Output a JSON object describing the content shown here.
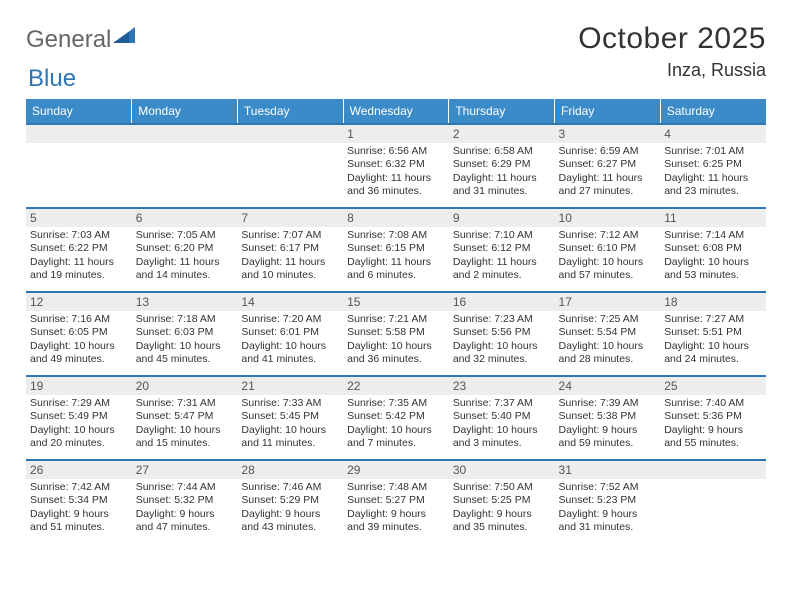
{
  "brand": {
    "general": "General",
    "blue": "Blue"
  },
  "title": "October 2025",
  "location": "Inza, Russia",
  "colors": {
    "header_bg": "#3b8bc8",
    "border": "#2e75b6",
    "daynum_bg": "#ededed",
    "text": "#333333",
    "logo_gray": "#666666",
    "logo_blue": "#2e75b6"
  },
  "daysOfWeek": [
    "Sunday",
    "Monday",
    "Tuesday",
    "Wednesday",
    "Thursday",
    "Friday",
    "Saturday"
  ],
  "weeks": [
    [
      null,
      null,
      null,
      {
        "num": "1",
        "sunrise": "6:56 AM",
        "sunset": "6:32 PM",
        "daylight": "11 hours and 36 minutes."
      },
      {
        "num": "2",
        "sunrise": "6:58 AM",
        "sunset": "6:29 PM",
        "daylight": "11 hours and 31 minutes."
      },
      {
        "num": "3",
        "sunrise": "6:59 AM",
        "sunset": "6:27 PM",
        "daylight": "11 hours and 27 minutes."
      },
      {
        "num": "4",
        "sunrise": "7:01 AM",
        "sunset": "6:25 PM",
        "daylight": "11 hours and 23 minutes."
      }
    ],
    [
      {
        "num": "5",
        "sunrise": "7:03 AM",
        "sunset": "6:22 PM",
        "daylight": "11 hours and 19 minutes."
      },
      {
        "num": "6",
        "sunrise": "7:05 AM",
        "sunset": "6:20 PM",
        "daylight": "11 hours and 14 minutes."
      },
      {
        "num": "7",
        "sunrise": "7:07 AM",
        "sunset": "6:17 PM",
        "daylight": "11 hours and 10 minutes."
      },
      {
        "num": "8",
        "sunrise": "7:08 AM",
        "sunset": "6:15 PM",
        "daylight": "11 hours and 6 minutes."
      },
      {
        "num": "9",
        "sunrise": "7:10 AM",
        "sunset": "6:12 PM",
        "daylight": "11 hours and 2 minutes."
      },
      {
        "num": "10",
        "sunrise": "7:12 AM",
        "sunset": "6:10 PM",
        "daylight": "10 hours and 57 minutes."
      },
      {
        "num": "11",
        "sunrise": "7:14 AM",
        "sunset": "6:08 PM",
        "daylight": "10 hours and 53 minutes."
      }
    ],
    [
      {
        "num": "12",
        "sunrise": "7:16 AM",
        "sunset": "6:05 PM",
        "daylight": "10 hours and 49 minutes."
      },
      {
        "num": "13",
        "sunrise": "7:18 AM",
        "sunset": "6:03 PM",
        "daylight": "10 hours and 45 minutes."
      },
      {
        "num": "14",
        "sunrise": "7:20 AM",
        "sunset": "6:01 PM",
        "daylight": "10 hours and 41 minutes."
      },
      {
        "num": "15",
        "sunrise": "7:21 AM",
        "sunset": "5:58 PM",
        "daylight": "10 hours and 36 minutes."
      },
      {
        "num": "16",
        "sunrise": "7:23 AM",
        "sunset": "5:56 PM",
        "daylight": "10 hours and 32 minutes."
      },
      {
        "num": "17",
        "sunrise": "7:25 AM",
        "sunset": "5:54 PM",
        "daylight": "10 hours and 28 minutes."
      },
      {
        "num": "18",
        "sunrise": "7:27 AM",
        "sunset": "5:51 PM",
        "daylight": "10 hours and 24 minutes."
      }
    ],
    [
      {
        "num": "19",
        "sunrise": "7:29 AM",
        "sunset": "5:49 PM",
        "daylight": "10 hours and 20 minutes."
      },
      {
        "num": "20",
        "sunrise": "7:31 AM",
        "sunset": "5:47 PM",
        "daylight": "10 hours and 15 minutes."
      },
      {
        "num": "21",
        "sunrise": "7:33 AM",
        "sunset": "5:45 PM",
        "daylight": "10 hours and 11 minutes."
      },
      {
        "num": "22",
        "sunrise": "7:35 AM",
        "sunset": "5:42 PM",
        "daylight": "10 hours and 7 minutes."
      },
      {
        "num": "23",
        "sunrise": "7:37 AM",
        "sunset": "5:40 PM",
        "daylight": "10 hours and 3 minutes."
      },
      {
        "num": "24",
        "sunrise": "7:39 AM",
        "sunset": "5:38 PM",
        "daylight": "9 hours and 59 minutes."
      },
      {
        "num": "25",
        "sunrise": "7:40 AM",
        "sunset": "5:36 PM",
        "daylight": "9 hours and 55 minutes."
      }
    ],
    [
      {
        "num": "26",
        "sunrise": "7:42 AM",
        "sunset": "5:34 PM",
        "daylight": "9 hours and 51 minutes."
      },
      {
        "num": "27",
        "sunrise": "7:44 AM",
        "sunset": "5:32 PM",
        "daylight": "9 hours and 47 minutes."
      },
      {
        "num": "28",
        "sunrise": "7:46 AM",
        "sunset": "5:29 PM",
        "daylight": "9 hours and 43 minutes."
      },
      {
        "num": "29",
        "sunrise": "7:48 AM",
        "sunset": "5:27 PM",
        "daylight": "9 hours and 39 minutes."
      },
      {
        "num": "30",
        "sunrise": "7:50 AM",
        "sunset": "5:25 PM",
        "daylight": "9 hours and 35 minutes."
      },
      {
        "num": "31",
        "sunrise": "7:52 AM",
        "sunset": "5:23 PM",
        "daylight": "9 hours and 31 minutes."
      },
      null
    ]
  ],
  "labels": {
    "sunrise": "Sunrise:",
    "sunset": "Sunset:",
    "daylight": "Daylight:"
  }
}
